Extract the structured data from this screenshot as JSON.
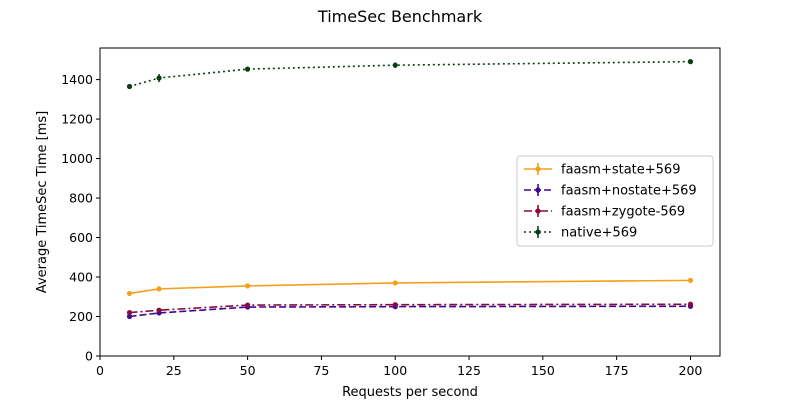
{
  "chart_data": {
    "type": "line",
    "title": "TimeSec Benchmark",
    "xlabel": "Requests per second",
    "ylabel": "Average TimeSec Time [ms]",
    "xlim": [
      0,
      210
    ],
    "ylim": [
      0,
      1560
    ],
    "xticks": [
      0,
      25,
      50,
      75,
      100,
      125,
      150,
      175,
      200
    ],
    "yticks": [
      0,
      200,
      400,
      600,
      800,
      1000,
      1200,
      1400
    ],
    "x": [
      10,
      20,
      50,
      100,
      200
    ],
    "grid": false,
    "legend_position": "center-right",
    "series": [
      {
        "name": "faasm+state+569",
        "values": [
          317,
          340,
          355,
          370,
          383
        ],
        "errors": [
          5,
          6,
          5,
          6,
          5
        ],
        "color": "#f5a01a",
        "style": "solid"
      },
      {
        "name": "faasm+nostate+569",
        "values": [
          200,
          218,
          248,
          250,
          252
        ],
        "errors": [
          4,
          4,
          4,
          4,
          4
        ],
        "color": "#3d0a91",
        "style": "dashed"
      },
      {
        "name": "faasm+zygote-569",
        "values": [
          220,
          232,
          258,
          260,
          262
        ],
        "errors": [
          4,
          4,
          4,
          4,
          4
        ],
        "color": "#8a0a43",
        "style": "dashdot"
      },
      {
        "name": "native+569",
        "values": [
          1365,
          1408,
          1453,
          1473,
          1491
        ],
        "errors": [
          8,
          20,
          8,
          14,
          6
        ],
        "color": "#0b3d14",
        "style": "dotted"
      }
    ]
  }
}
